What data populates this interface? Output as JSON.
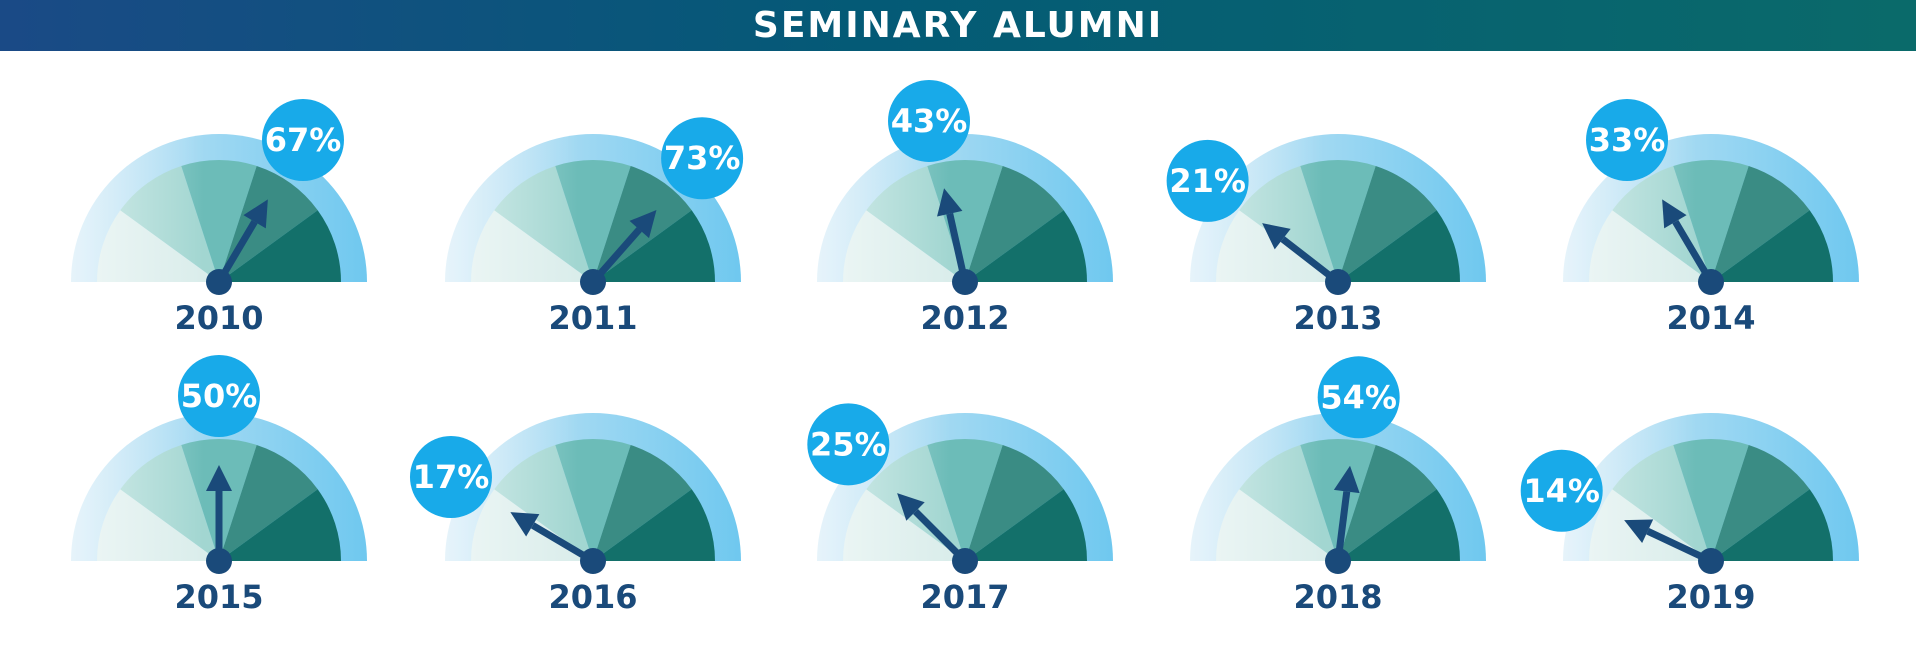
{
  "header": {
    "title": "SEMINARY ALUMNI"
  },
  "colors": {
    "banner_left": "#1a4a86",
    "banner_mid": "#045a76",
    "banner_right": "#0a6a6a",
    "ring_light": "#c9e6f5",
    "ring_dark": "#6fc8ef",
    "sector_1": "#daedeb",
    "sector_2": "#a2d6d1",
    "sector_3": "#6cbcb8",
    "sector_4": "#3a8c84",
    "sector_5": "#13706a",
    "needle": "#1a4a7a",
    "bubble": "#18aae9"
  },
  "chart_data": {
    "type": "gauge",
    "title": "SEMINARY ALUMNI",
    "unit": "%",
    "range": [
      0,
      100
    ],
    "categories": [
      "2010",
      "2011",
      "2012",
      "2013",
      "2014",
      "2015",
      "2016",
      "2017",
      "2018",
      "2019"
    ],
    "values": [
      67,
      73,
      43,
      21,
      33,
      50,
      17,
      25,
      54,
      14
    ],
    "labels": [
      "67%",
      "73%",
      "43%",
      "21%",
      "33%",
      "50%",
      "17%",
      "25%",
      "54%",
      "14%"
    ]
  }
}
